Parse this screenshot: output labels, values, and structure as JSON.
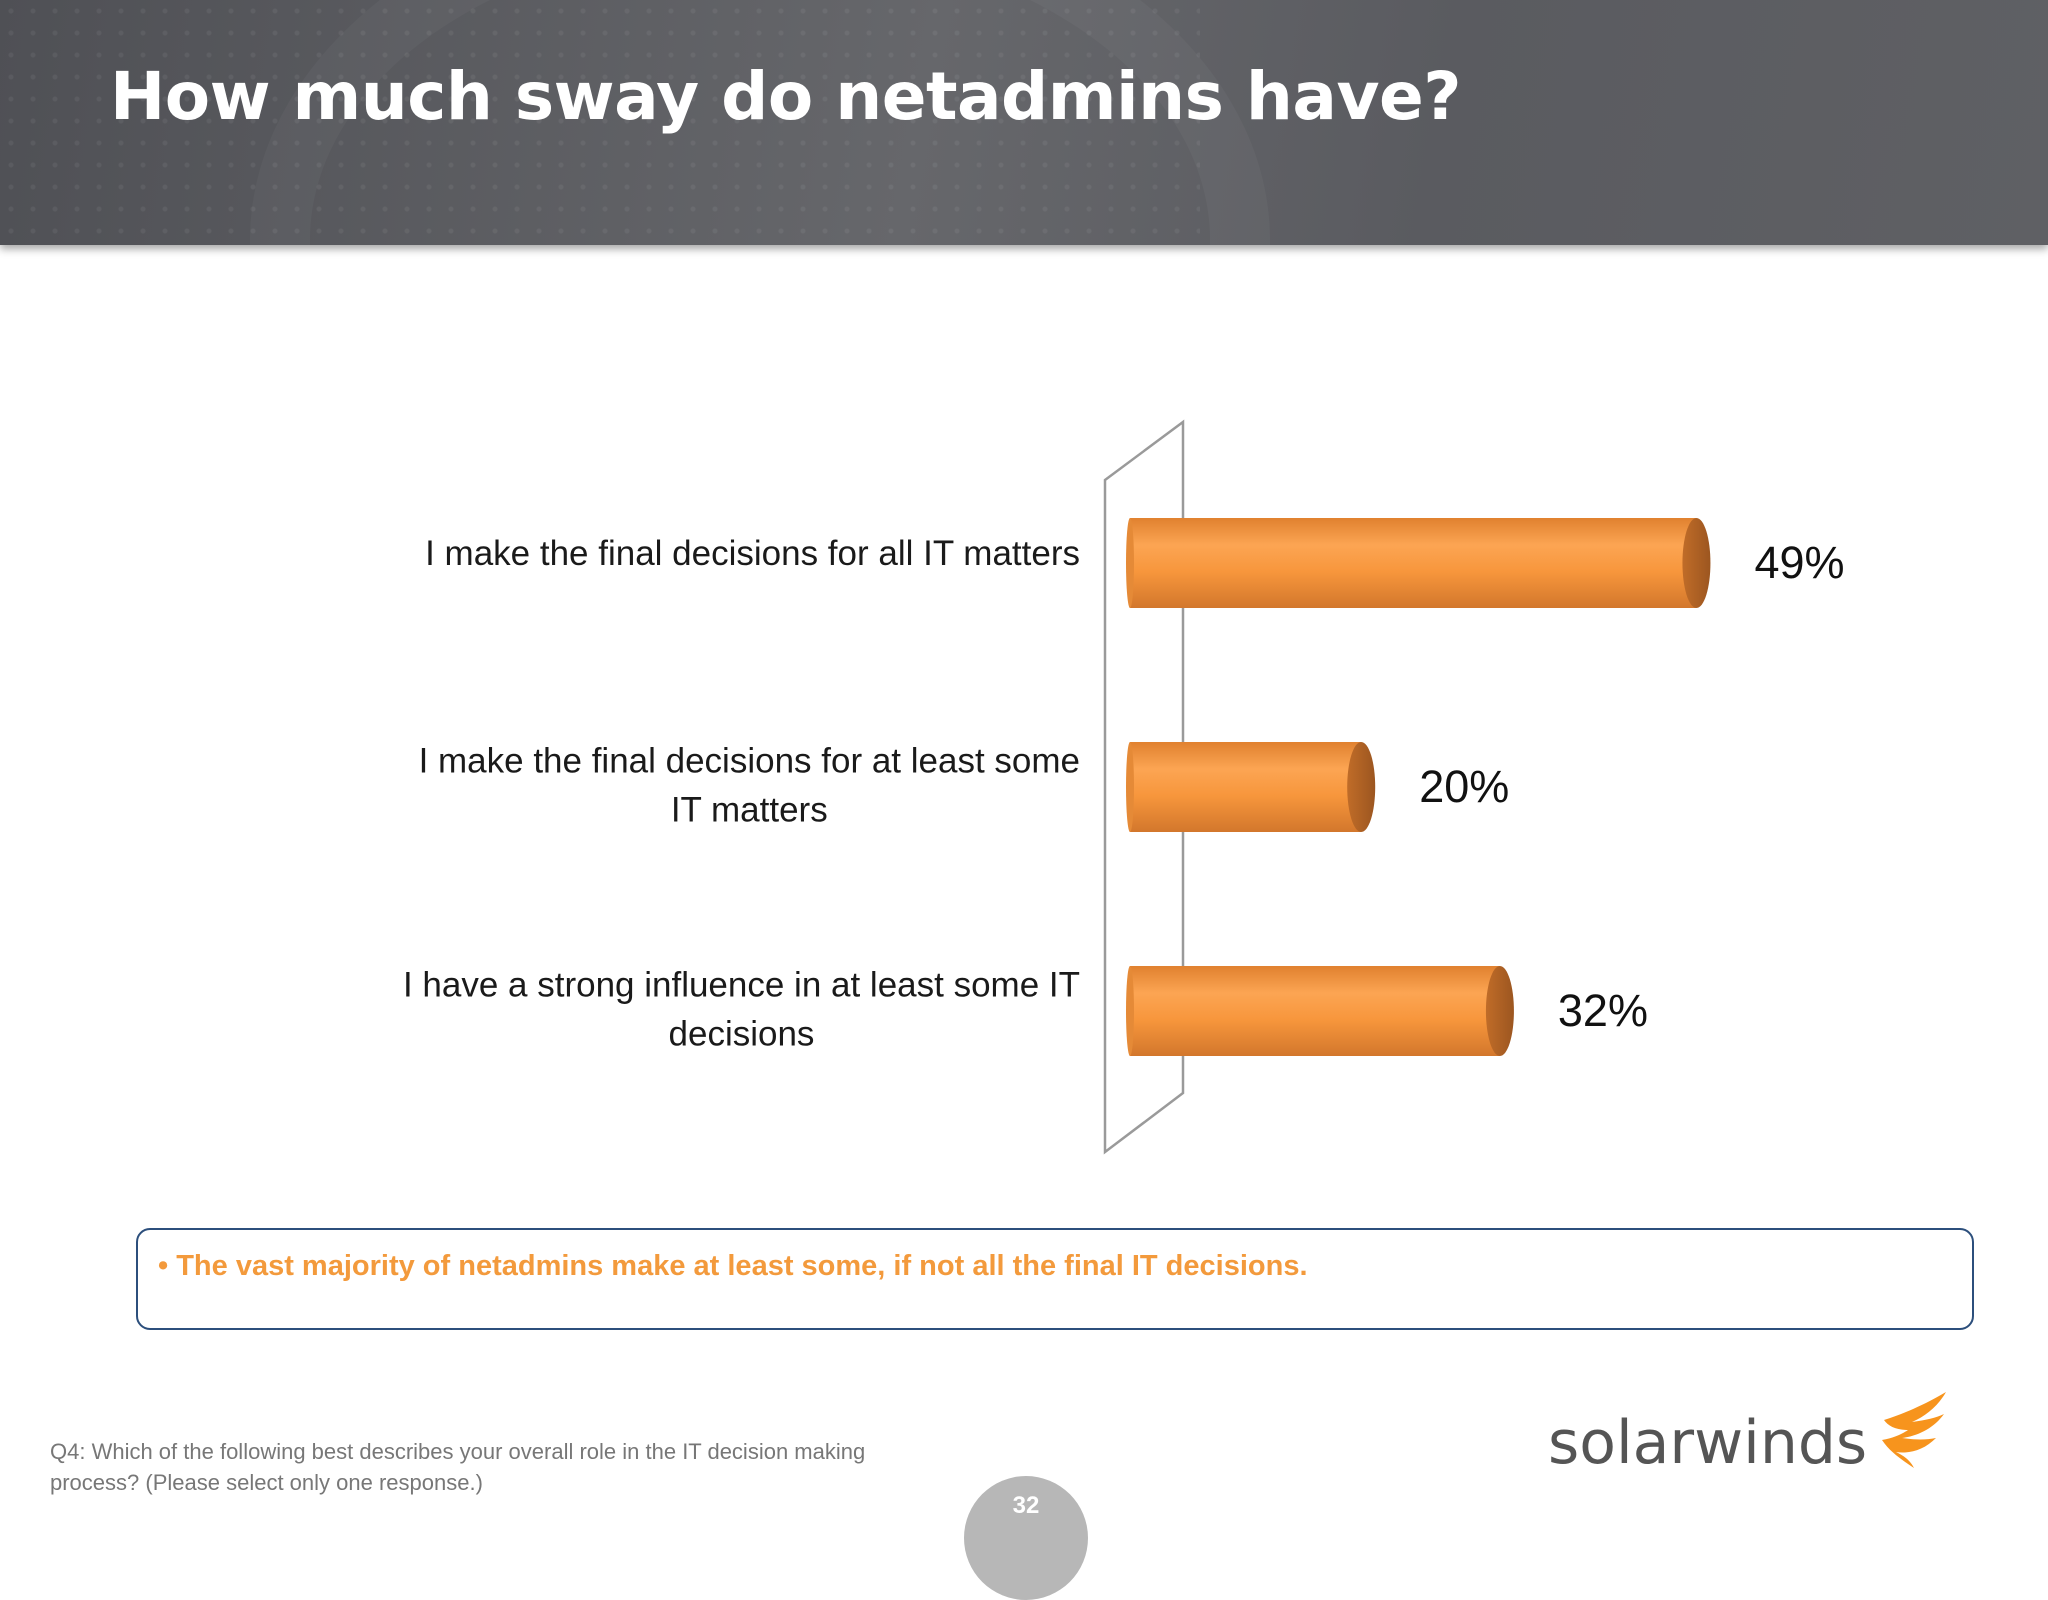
{
  "slide": {
    "title": "How much sway do netadmins have?",
    "callout": "• The vast majority of netadmins make at least some, if not all the final IT decisions.",
    "footnote": "Q4: Which of the following best describes your overall role in the IT decision making process? (Please select only one response.)",
    "page_number": "32",
    "logo_text": "solarwinds",
    "logo_icon": "flame-icon"
  },
  "colors": {
    "header": "#5f6064",
    "bar": "#f79a3f",
    "bar_shade": "#b8692a",
    "callout_text": "#f39a3c",
    "callout_border": "#2c4f7c",
    "logo_accent": "#f7941d"
  },
  "chart_data": {
    "type": "bar",
    "orientation": "horizontal",
    "style": "3d-cylinder",
    "categories": [
      "I make the final decisions for all IT matters",
      "I make the final decisions for at least some IT matters",
      "I have a strong influence in at least some IT decisions"
    ],
    "values": [
      49,
      20,
      32
    ],
    "value_labels": [
      "49%",
      "20%",
      "32%"
    ],
    "xlim": [
      0,
      60
    ],
    "grid": false,
    "legend": "none"
  }
}
